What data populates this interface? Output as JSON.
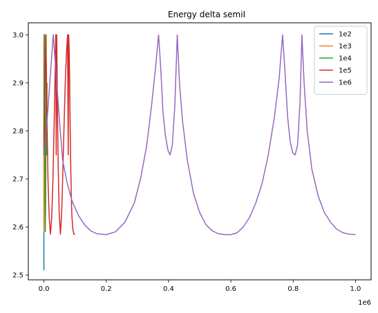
{
  "chart_data": {
    "type": "line",
    "title": "Energy delta semiI",
    "xlabel": "",
    "ylabel": "",
    "x_offset_label": "1e6",
    "xlim": [
      -50000,
      1050000
    ],
    "ylim": [
      2.49,
      3.025
    ],
    "x_ticks": [
      0,
      0.2,
      0.4,
      0.6,
      0.8,
      1.0
    ],
    "x_tick_labels": [
      "0.0",
      "0.2",
      "0.4",
      "0.6",
      "0.8",
      "1.0"
    ],
    "y_ticks": [
      2.5,
      2.6,
      2.7,
      2.8,
      2.9,
      3.0
    ],
    "y_tick_labels": [
      "2.5",
      "2.6",
      "2.7",
      "2.8",
      "2.9",
      "3.0"
    ],
    "grid": false,
    "legend_position": "top-right",
    "series": [
      {
        "name": "1e2",
        "color": "#1f77b4",
        "x": [
          0,
          10,
          20,
          30,
          40,
          50,
          60,
          70,
          80,
          90,
          100
        ],
        "y": [
          2.51,
          2.58,
          2.75,
          2.9,
          3.0,
          2.86,
          2.78,
          2.88,
          3.0,
          2.9,
          2.75
        ]
      },
      {
        "name": "1e3",
        "color": "#ff7f0e",
        "x": [
          0,
          100,
          200,
          300,
          400,
          500,
          600,
          700,
          800,
          900,
          1000
        ],
        "y": [
          2.75,
          2.95,
          3.0,
          2.7,
          2.59,
          2.75,
          3.0,
          2.88,
          2.75,
          2.9,
          3.0
        ]
      },
      {
        "name": "1e4",
        "color": "#2ca02c",
        "x": [
          0,
          1000,
          2000,
          3000,
          3700,
          4500,
          5500,
          6300,
          7000,
          8000,
          9000,
          10000
        ],
        "y": [
          2.75,
          2.9,
          3.0,
          2.8,
          2.65,
          2.59,
          2.65,
          2.8,
          3.0,
          2.85,
          2.75,
          2.9
        ]
      },
      {
        "name": "1e5",
        "color": "#d62728",
        "x": [
          0,
          2000,
          4000,
          6000,
          8000,
          10000,
          13000,
          17000,
          21000,
          25000,
          29000,
          33000,
          36000,
          38000,
          39500,
          41000,
          42500,
          44000,
          46000,
          49000,
          53000,
          57000,
          61000,
          65000,
          69000,
          73000,
          76000,
          78000,
          79500,
          81000,
          82500,
          84000,
          86000,
          88000,
          90000,
          93000,
          96000,
          100000
        ],
        "y": [
          2.75,
          2.83,
          2.93,
          3.0,
          2.92,
          2.82,
          2.7,
          2.62,
          2.585,
          2.62,
          2.7,
          2.82,
          2.92,
          3.0,
          2.75,
          3.0,
          2.92,
          2.82,
          2.72,
          2.63,
          2.585,
          2.63,
          2.72,
          2.82,
          2.91,
          2.97,
          3.0,
          2.75,
          3.0,
          2.97,
          2.91,
          2.82,
          2.73,
          2.66,
          2.62,
          2.595,
          2.585,
          2.585
        ]
      },
      {
        "name": "1e6",
        "color": "#9467bd",
        "x": [
          0,
          10000,
          20000,
          30000,
          40000,
          50000,
          60000,
          75000,
          90000,
          110000,
          130000,
          150000,
          170000,
          200000,
          230000,
          260000,
          290000,
          310000,
          330000,
          345000,
          358000,
          368000,
          375000,
          382000,
          390000,
          398000,
          405000,
          412000,
          420000,
          428000,
          435000,
          445000,
          460000,
          480000,
          500000,
          520000,
          540000,
          560000,
          580000,
          600000,
          620000,
          640000,
          660000,
          680000,
          700000,
          720000,
          740000,
          755000,
          766000,
          774000,
          782000,
          790000,
          798000,
          806000,
          814000,
          822000,
          828000,
          835000,
          845000,
          860000,
          880000,
          900000,
          920000,
          940000,
          960000,
          980000,
          1000000
        ],
        "y": [
          2.75,
          2.82,
          2.91,
          3.0,
          2.91,
          2.82,
          2.74,
          2.69,
          2.655,
          2.625,
          2.605,
          2.592,
          2.586,
          2.584,
          2.59,
          2.61,
          2.65,
          2.7,
          2.77,
          2.85,
          2.93,
          3.0,
          2.93,
          2.84,
          2.79,
          2.76,
          2.75,
          2.77,
          2.85,
          3.0,
          2.9,
          2.82,
          2.74,
          2.67,
          2.63,
          2.605,
          2.592,
          2.586,
          2.584,
          2.584,
          2.588,
          2.6,
          2.62,
          2.65,
          2.69,
          2.75,
          2.83,
          2.91,
          3.0,
          2.92,
          2.83,
          2.78,
          2.755,
          2.75,
          2.77,
          2.86,
          3.0,
          2.9,
          2.8,
          2.72,
          2.665,
          2.63,
          2.61,
          2.595,
          2.588,
          2.585,
          2.584
        ]
      }
    ]
  }
}
